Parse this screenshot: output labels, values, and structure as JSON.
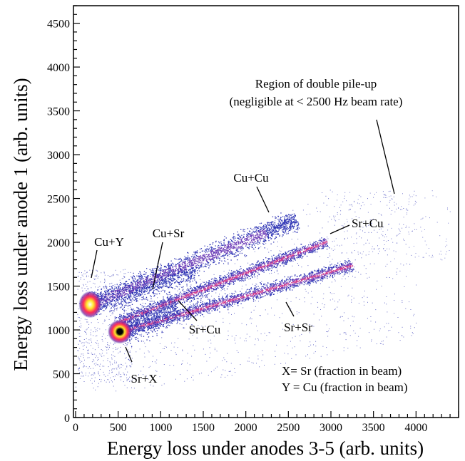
{
  "chart_data": {
    "type": "heatmap",
    "title": "",
    "xlabel": "Energy loss under anodes 3-5 (arb. units)",
    "ylabel": "Energy loss under anode 1 (arb. units)",
    "xlim": [
      0,
      4500
    ],
    "ylim": [
      0,
      4700
    ],
    "x_ticks": [
      "0",
      "500",
      "1000",
      "1500",
      "2000",
      "2500",
      "3000",
      "3500",
      "4000"
    ],
    "y_ticks": [
      "0",
      "500",
      "1000",
      "1500",
      "2000",
      "2500",
      "3000",
      "3500",
      "4000",
      "4500"
    ],
    "grid": false,
    "colormap": [
      "#2b2fb0",
      "#6a3fb8",
      "#c0307a",
      "#ff2a5a",
      "#ffe92a",
      "#000000"
    ],
    "clusters": [
      {
        "label": "Cu+Y",
        "x": 170,
        "y": 1290
      },
      {
        "label": "Sr+X",
        "x": 520,
        "y": 980
      }
    ],
    "bands": [
      {
        "label": "Cu+Cu",
        "from": [
          170,
          1290
        ],
        "to": [
          2600,
          2260
        ]
      },
      {
        "label": "Cu+Sr / Sr+Cu",
        "from": [
          520,
          1100
        ],
        "to": [
          2950,
          2010
        ]
      },
      {
        "label": "Sr+Sr",
        "from": [
          520,
          980
        ],
        "to": [
          3250,
          1740
        ]
      }
    ],
    "annotations": {
      "pileup_line1": "Region of double pile-up",
      "pileup_line2": "(negligible at < 2500 Hz beam rate)",
      "cu_cu": "Cu+Cu",
      "sr_cu_upper": "Sr+Cu",
      "cu_y": "Cu+Y",
      "cu_sr": "Cu+Sr",
      "sr_cu_lower": "Sr+Cu",
      "sr_sr": "Sr+Sr",
      "sr_x": "Sr+X",
      "legend_x": "X= Sr (fraction in beam)",
      "legend_y": "Y = Cu (fraction in beam)"
    }
  }
}
